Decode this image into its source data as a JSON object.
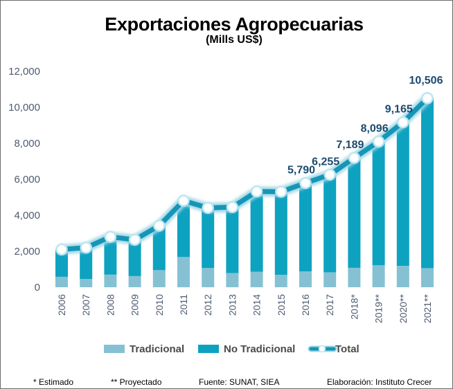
{
  "chart_data": {
    "type": "bar",
    "stacked": true,
    "title": "Exportaciones Agropecuarias",
    "subtitle": "(Mills US$)",
    "xlabel": "",
    "ylabel": "",
    "ylim": [
      0,
      12000
    ],
    "yticks": [
      0,
      2000,
      4000,
      6000,
      8000,
      10000,
      12000
    ],
    "ytick_labels": [
      "0",
      "2,000",
      "4,000",
      "6,000",
      "8,000",
      "10,000",
      "12,000"
    ],
    "categories": [
      "2006",
      "2007",
      "2008",
      "2009",
      "2010",
      "2011",
      "2012",
      "2013",
      "2014",
      "2015",
      "2016",
      "2017",
      "2018*",
      "2019**",
      "2020**",
      "2021**"
    ],
    "series": [
      {
        "name": "Tradicional",
        "kind": "bar",
        "color": "#86c1d3",
        "values": [
          580,
          460,
          700,
          620,
          950,
          1680,
          1070,
          790,
          860,
          690,
          880,
          830,
          1080,
          1220,
          1190,
          1060
        ]
      },
      {
        "name": "No Tradicional",
        "kind": "bar",
        "color": "#0ea2c1",
        "values": [
          1520,
          1740,
          2100,
          2020,
          2470,
          3130,
          3340,
          3660,
          4460,
          4620,
          4910,
          5425,
          6109,
          6876,
          7975,
          9446
        ]
      },
      {
        "name": "Total",
        "kind": "line",
        "color": "#1596b6",
        "values": [
          2100,
          2200,
          2800,
          2640,
          3420,
          4810,
          4410,
          4450,
          5320,
          5310,
          5790,
          6255,
          7189,
          8096,
          9165,
          10506
        ]
      }
    ],
    "data_labels": [
      {
        "category": "2016",
        "text": "5,790"
      },
      {
        "category": "2017",
        "text": "6,255"
      },
      {
        "category": "2018*",
        "text": "7,189"
      },
      {
        "category": "2019**",
        "text": "8,096"
      },
      {
        "category": "2020**",
        "text": "9,165"
      },
      {
        "category": "2021**",
        "text": "10,506"
      }
    ],
    "legend": {
      "placement": "bottom",
      "items": [
        "Tradicional",
        "No Tradicional",
        "Total"
      ]
    },
    "grid": false
  },
  "footnotes": {
    "estimado": "* Estimado",
    "proyectado": "** Proyectado",
    "fuente": "Fuente:  SUNAT,  SIEA",
    "elaboracion": "Elaboración:  Instituto Crecer"
  },
  "colors": {
    "tradicional": "#86c1d3",
    "no_tradicional": "#0ea2c1",
    "total_line": "#1596b6",
    "total_label": "#1b4a6e",
    "axis_text": "#4d5a70"
  }
}
